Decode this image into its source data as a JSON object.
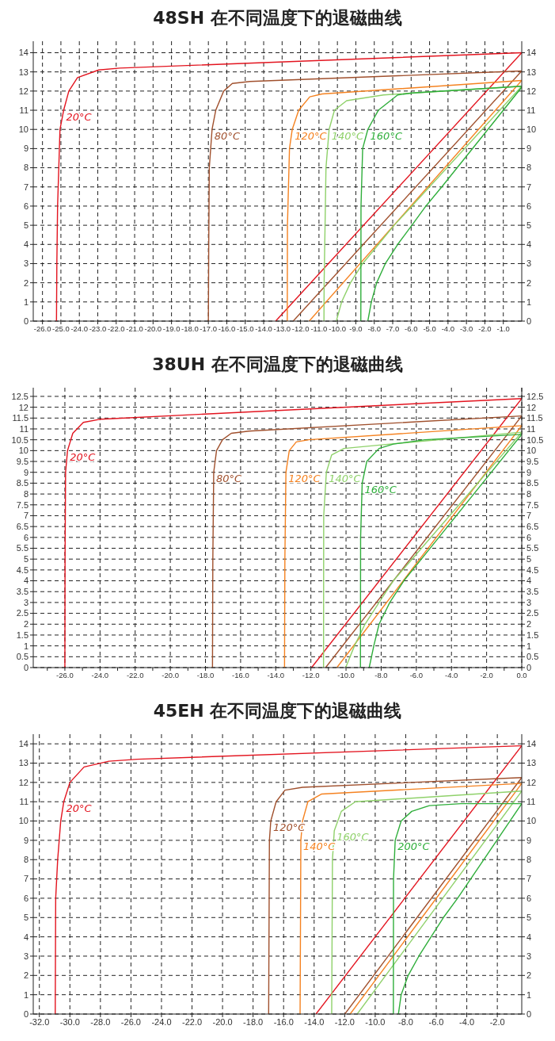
{
  "chart_data": [
    {
      "type": "line",
      "title": "48SH 在不同温度下的退磁曲线",
      "xlim": [
        -26.5,
        0
      ],
      "ylim": [
        0,
        14.6
      ],
      "y2lim": [
        0,
        14.6
      ],
      "grid": true,
      "xticks": [
        {
          "value": -26,
          "label": "-26.0"
        },
        {
          "value": -25,
          "label": "-25.0"
        },
        {
          "value": -24,
          "label": "-24.0"
        },
        {
          "value": -23,
          "label": "-23.0"
        },
        {
          "value": -22,
          "label": "-22.0"
        },
        {
          "value": -21,
          "label": "-21.0"
        },
        {
          "value": -20,
          "label": "-20.0"
        },
        {
          "value": -19,
          "label": "-19.0"
        },
        {
          "value": -18,
          "label": "-18.0"
        },
        {
          "value": -17,
          "label": "-17.0"
        },
        {
          "value": -16,
          "label": "-16.0"
        },
        {
          "value": -15,
          "label": "-15.0"
        },
        {
          "value": -14,
          "label": "-14.0"
        },
        {
          "value": -13,
          "label": "-13.0"
        },
        {
          "value": -12,
          "label": "-12.0"
        },
        {
          "value": -11,
          "label": "-11.0"
        },
        {
          "value": -10,
          "label": "-10.0"
        },
        {
          "value": -9,
          "label": "-9.0"
        },
        {
          "value": -8,
          "label": "-8.0"
        },
        {
          "value": -7,
          "label": "-7.0"
        },
        {
          "value": -6,
          "label": "-6.0"
        },
        {
          "value": -5,
          "label": "-5.0"
        },
        {
          "value": -4,
          "label": "-4.0"
        },
        {
          "value": -3,
          "label": "-3.0"
        },
        {
          "value": -2,
          "label": "-2.0"
        },
        {
          "value": -1,
          "label": "-1.0"
        }
      ],
      "yticks": [
        0,
        1,
        2,
        3,
        4,
        5,
        6,
        7,
        8,
        9,
        10,
        11,
        12,
        13,
        14
      ],
      "y2ticks": [
        0,
        1,
        2,
        3,
        4,
        5,
        6,
        7,
        8,
        9,
        10,
        11,
        12,
        13,
        14
      ],
      "series": [
        {
          "name": "20°C",
          "color": "#e3141f",
          "x": [
            -25.24,
            -25.22,
            -25.18,
            -25.05,
            -24.85,
            -24.57,
            -24.1,
            -22.95,
            -21.8,
            0
          ],
          "values": [
            0,
            3,
            6,
            10,
            11,
            12,
            12.7,
            13.1,
            13.2,
            14
          ]
        },
        {
          "color": "#e3141f",
          "x": [
            -13.35,
            0
          ],
          "values": [
            0,
            14
          ]
        },
        {
          "name": "80°C",
          "color": "#a0502d",
          "x": [
            -17.0,
            -16.98,
            -16.95,
            -16.8,
            -16.6,
            -16.17,
            -15.7,
            -14.74,
            0
          ],
          "values": [
            0,
            4,
            8,
            10,
            11,
            12,
            12.4,
            12.5,
            13.05
          ]
        },
        {
          "color": "#a0502d",
          "x": [
            -12.4,
            0
          ],
          "values": [
            0,
            13.05
          ]
        },
        {
          "name": "120°C",
          "color": "#f58220",
          "x": [
            -12.72,
            -12.71,
            -12.6,
            -12.45,
            -12.1,
            -11.5,
            -10.83,
            0
          ],
          "values": [
            0,
            5,
            9,
            10,
            11,
            11.7,
            11.85,
            12.55
          ]
        },
        {
          "color": "#f58220",
          "x": [
            -11.53,
            0
          ],
          "values": [
            0,
            12.55
          ]
        },
        {
          "name": "140°C",
          "color": "#8fd16a",
          "x": [
            -10.73,
            -10.72,
            -10.62,
            -10.45,
            -10.16,
            -9.5,
            -7.5,
            0
          ],
          "values": [
            0,
            2,
            8,
            10,
            11,
            11.5,
            11.8,
            12.25
          ]
        },
        {
          "color": "#8fd16a",
          "x": [
            -10.06,
            -9.77,
            -9.29,
            -8.63,
            -7.77,
            -6.92,
            -5.96,
            0
          ],
          "values": [
            0,
            1,
            2,
            3,
            4,
            5,
            6,
            12.25
          ]
        },
        {
          "name": "160°C",
          "color": "#2fae3b",
          "x": [
            -8.73,
            -8.72,
            -8.63,
            -8.35,
            -7.78,
            -6.73,
            -5.96,
            0
          ],
          "values": [
            0,
            6,
            9,
            10,
            11,
            11.8,
            11.9,
            12.25
          ]
        },
        {
          "color": "#2fae3b",
          "x": [
            -8.35,
            -8.16,
            -7.87,
            -7.4,
            -6.73,
            -5.96,
            -5.2,
            -4.34,
            0
          ],
          "values": [
            0,
            1,
            2,
            3,
            4,
            5,
            6,
            7,
            12.2
          ]
        }
      ]
    },
    {
      "type": "line",
      "title": "38UH 在不同温度下的退磁曲线",
      "xlim": [
        -27.8,
        0
      ],
      "ylim": [
        0,
        12.9
      ],
      "y2lim": [
        0,
        12.9
      ],
      "grid": true,
      "xticks": [
        {
          "value": -27,
          "label": null
        },
        {
          "value": -26,
          "label": "-26.0"
        },
        {
          "value": -25,
          "label": null
        },
        {
          "value": -24,
          "label": "-24.0"
        },
        {
          "value": -23,
          "label": null
        },
        {
          "value": -22,
          "label": "-22.0"
        },
        {
          "value": -21,
          "label": null
        },
        {
          "value": -20,
          "label": "-20.0"
        },
        {
          "value": -19,
          "label": null
        },
        {
          "value": -18,
          "label": "-18.0"
        },
        {
          "value": -17,
          "label": null
        },
        {
          "value": -16,
          "label": "-16.0"
        },
        {
          "value": -15,
          "label": null
        },
        {
          "value": -14,
          "label": "-14.0"
        },
        {
          "value": -13,
          "label": null
        },
        {
          "value": -12,
          "label": "-12.0"
        },
        {
          "value": -11,
          "label": null
        },
        {
          "value": -10,
          "label": "-10.0"
        },
        {
          "value": -9,
          "label": null
        },
        {
          "value": -8,
          "label": "-8.0"
        },
        {
          "value": -7,
          "label": null
        },
        {
          "value": -6,
          "label": "-6.0"
        },
        {
          "value": -5,
          "label": null
        },
        {
          "value": -4,
          "label": "-4.0"
        },
        {
          "value": -3,
          "label": null
        },
        {
          "value": -2,
          "label": "-2.0"
        },
        {
          "value": -1,
          "label": null
        },
        {
          "value": 0,
          "label": "0.0"
        }
      ],
      "yticks": [
        0,
        0.5,
        1,
        1.5,
        2,
        2.5,
        3,
        3.5,
        4,
        4.5,
        5,
        5.5,
        6,
        6.5,
        7,
        7.5,
        8,
        8.5,
        9,
        9.5,
        10,
        10.5,
        11,
        11.5,
        12,
        12.5
      ],
      "y2ticks": [
        0,
        0.5,
        1,
        1.5,
        2,
        2.5,
        3,
        3.5,
        4,
        4.5,
        5,
        5.5,
        6,
        6.5,
        7,
        7.5,
        8,
        8.5,
        9,
        9.5,
        10,
        10.5,
        11,
        11.5,
        12,
        12.5
      ],
      "series": [
        {
          "name": "20°C",
          "color": "#e3141f",
          "x": [
            -26.0,
            -25.99,
            -25.96,
            -25.85,
            -25.55,
            -24.95,
            -23.95,
            0
          ],
          "values": [
            0,
            5,
            9,
            10,
            10.8,
            11.3,
            11.45,
            12.4
          ]
        },
        {
          "color": "#e3141f",
          "x": [
            -11.96,
            0
          ],
          "values": [
            0,
            12.4
          ]
        },
        {
          "name": "80°C",
          "color": "#a0502d",
          "x": [
            -17.6,
            -17.58,
            -17.53,
            -17.37,
            -17.03,
            -16.53,
            -15.53,
            0
          ],
          "values": [
            0,
            5,
            9,
            10,
            10.5,
            10.8,
            10.9,
            11.6
          ]
        },
        {
          "color": "#a0502d",
          "x": [
            -11.16,
            0
          ],
          "values": [
            0,
            11.6
          ]
        },
        {
          "name": "120°C",
          "color": "#f58220",
          "x": [
            -13.5,
            -13.48,
            -13.42,
            -13.23,
            -12.83,
            -12.12,
            0
          ],
          "values": [
            0,
            5,
            9,
            10,
            10.4,
            10.5,
            11.15
          ]
        },
        {
          "color": "#f58220",
          "x": [
            -10.52,
            0
          ],
          "values": [
            0,
            11.15
          ]
        },
        {
          "name": "140°C",
          "color": "#8fd16a",
          "x": [
            -11.28,
            -11.27,
            -11.12,
            -10.82,
            -10.12,
            -7.5,
            0
          ],
          "values": [
            0,
            7,
            9,
            9.8,
            10.1,
            10.3,
            10.85
          ]
        },
        {
          "color": "#8fd16a",
          "x": [
            -10.02,
            -9.52,
            -8.92,
            -8.12,
            -7.31,
            0
          ],
          "values": [
            0,
            1,
            2,
            3,
            4,
            10.85
          ]
        },
        {
          "name": "160°C",
          "color": "#2fae3b",
          "x": [
            -9.18,
            -9.17,
            -9.08,
            -8.82,
            -8.12,
            -7.31,
            -5.51,
            0
          ],
          "values": [
            0,
            6,
            8.5,
            9.5,
            10.1,
            10.3,
            10.5,
            10.75
          ]
        },
        {
          "color": "#2fae3b",
          "x": [
            -8.68,
            -8.42,
            -8.12,
            -7.51,
            -6.71,
            -5.71,
            0
          ],
          "values": [
            0,
            1,
            2,
            3,
            4,
            5,
            10.75
          ]
        }
      ]
    },
    {
      "type": "line",
      "title": "45EH 在不同温度下的退磁曲线",
      "xlim": [
        -32.4,
        -0.4
      ],
      "ylim": [
        0,
        14.5
      ],
      "y2lim": [
        0,
        14.5
      ],
      "grid": true,
      "xticks": [
        {
          "value": -32,
          "label": "-32.0"
        },
        {
          "value": -30,
          "label": "-30.0"
        },
        {
          "value": -28,
          "label": "-28.0"
        },
        {
          "value": -26,
          "label": "-26.0"
        },
        {
          "value": -24,
          "label": "-24.0"
        },
        {
          "value": -22,
          "label": "-22.0"
        },
        {
          "value": -20,
          "label": "-20.0"
        },
        {
          "value": -18,
          "label": "-18.0"
        },
        {
          "value": -16,
          "label": "-16.0"
        },
        {
          "value": -14,
          "label": "-14.0"
        },
        {
          "value": -12,
          "label": "-12.0"
        },
        {
          "value": -10,
          "label": "-10.0"
        },
        {
          "value": -8,
          "label": "-8.0"
        },
        {
          "value": -6,
          "label": "-6.0"
        },
        {
          "value": -4,
          "label": "-4.0"
        },
        {
          "value": -2,
          "label": "-2.0"
        }
      ],
      "yticks": [
        0,
        1,
        2,
        3,
        4,
        5,
        6,
        7,
        8,
        9,
        10,
        11,
        12,
        13,
        14
      ],
      "y2ticks": [
        0,
        1,
        2,
        3,
        4,
        5,
        6,
        7,
        8,
        9,
        10,
        11,
        12,
        13,
        14
      ],
      "series": [
        {
          "name": "20°C",
          "color": "#e3141f",
          "x": [
            -30.96,
            -30.93,
            -30.8,
            -30.6,
            -30.4,
            -30.0,
            -29.07,
            -27.45,
            -25.6,
            -0.4
          ],
          "values": [
            0,
            6,
            8,
            10,
            11,
            12,
            12.8,
            13.1,
            13.2,
            13.9
          ]
        },
        {
          "color": "#e3141f",
          "x": [
            -13.88,
            -0.4
          ],
          "values": [
            0,
            13.9
          ]
        },
        {
          "name": "120°C",
          "color": "#a0502d",
          "x": [
            -16.98,
            -16.93,
            -16.84,
            -16.49,
            -15.91,
            -14.76,
            -0.4
          ],
          "values": [
            0,
            9,
            10,
            11,
            11.6,
            11.75,
            12.25
          ]
        },
        {
          "color": "#a0502d",
          "x": [
            -11.99,
            -0.4
          ],
          "values": [
            0,
            12.25
          ]
        },
        {
          "name": "140°C",
          "color": "#f58220",
          "x": [
            -14.92,
            -14.87,
            -14.76,
            -14.41,
            -13.5,
            -0.4
          ],
          "values": [
            0,
            9,
            10,
            11,
            11.4,
            11.95
          ]
        },
        {
          "color": "#f58220",
          "x": [
            -11.64,
            -0.4
          ],
          "values": [
            0,
            11.95
          ]
        },
        {
          "name": "160°C",
          "color": "#8fd16a",
          "x": [
            -12.85,
            -12.8,
            -12.68,
            -12.22,
            -11.3,
            -0.4
          ],
          "values": [
            0,
            8,
            9.5,
            10.5,
            11,
            11.55
          ]
        },
        {
          "color": "#8fd16a",
          "x": [
            -11.18,
            -0.4
          ],
          "values": [
            0,
            11.55
          ]
        },
        {
          "name": "200°C",
          "color": "#2fae3b",
          "x": [
            -8.81,
            -8.8,
            -8.69,
            -8.3,
            -7.61,
            -6.45,
            -4.38,
            -0.4
          ],
          "values": [
            0,
            7,
            9,
            10,
            10.5,
            10.8,
            10.9,
            10.9
          ]
        },
        {
          "color": "#2fae3b",
          "x": [
            -8.48,
            -8.3,
            -7.84,
            -7.14,
            -6.34,
            -5.53,
            -4.6,
            -0.4
          ],
          "values": [
            0,
            1,
            2,
            3,
            4,
            5,
            6,
            10.9
          ]
        }
      ]
    }
  ]
}
